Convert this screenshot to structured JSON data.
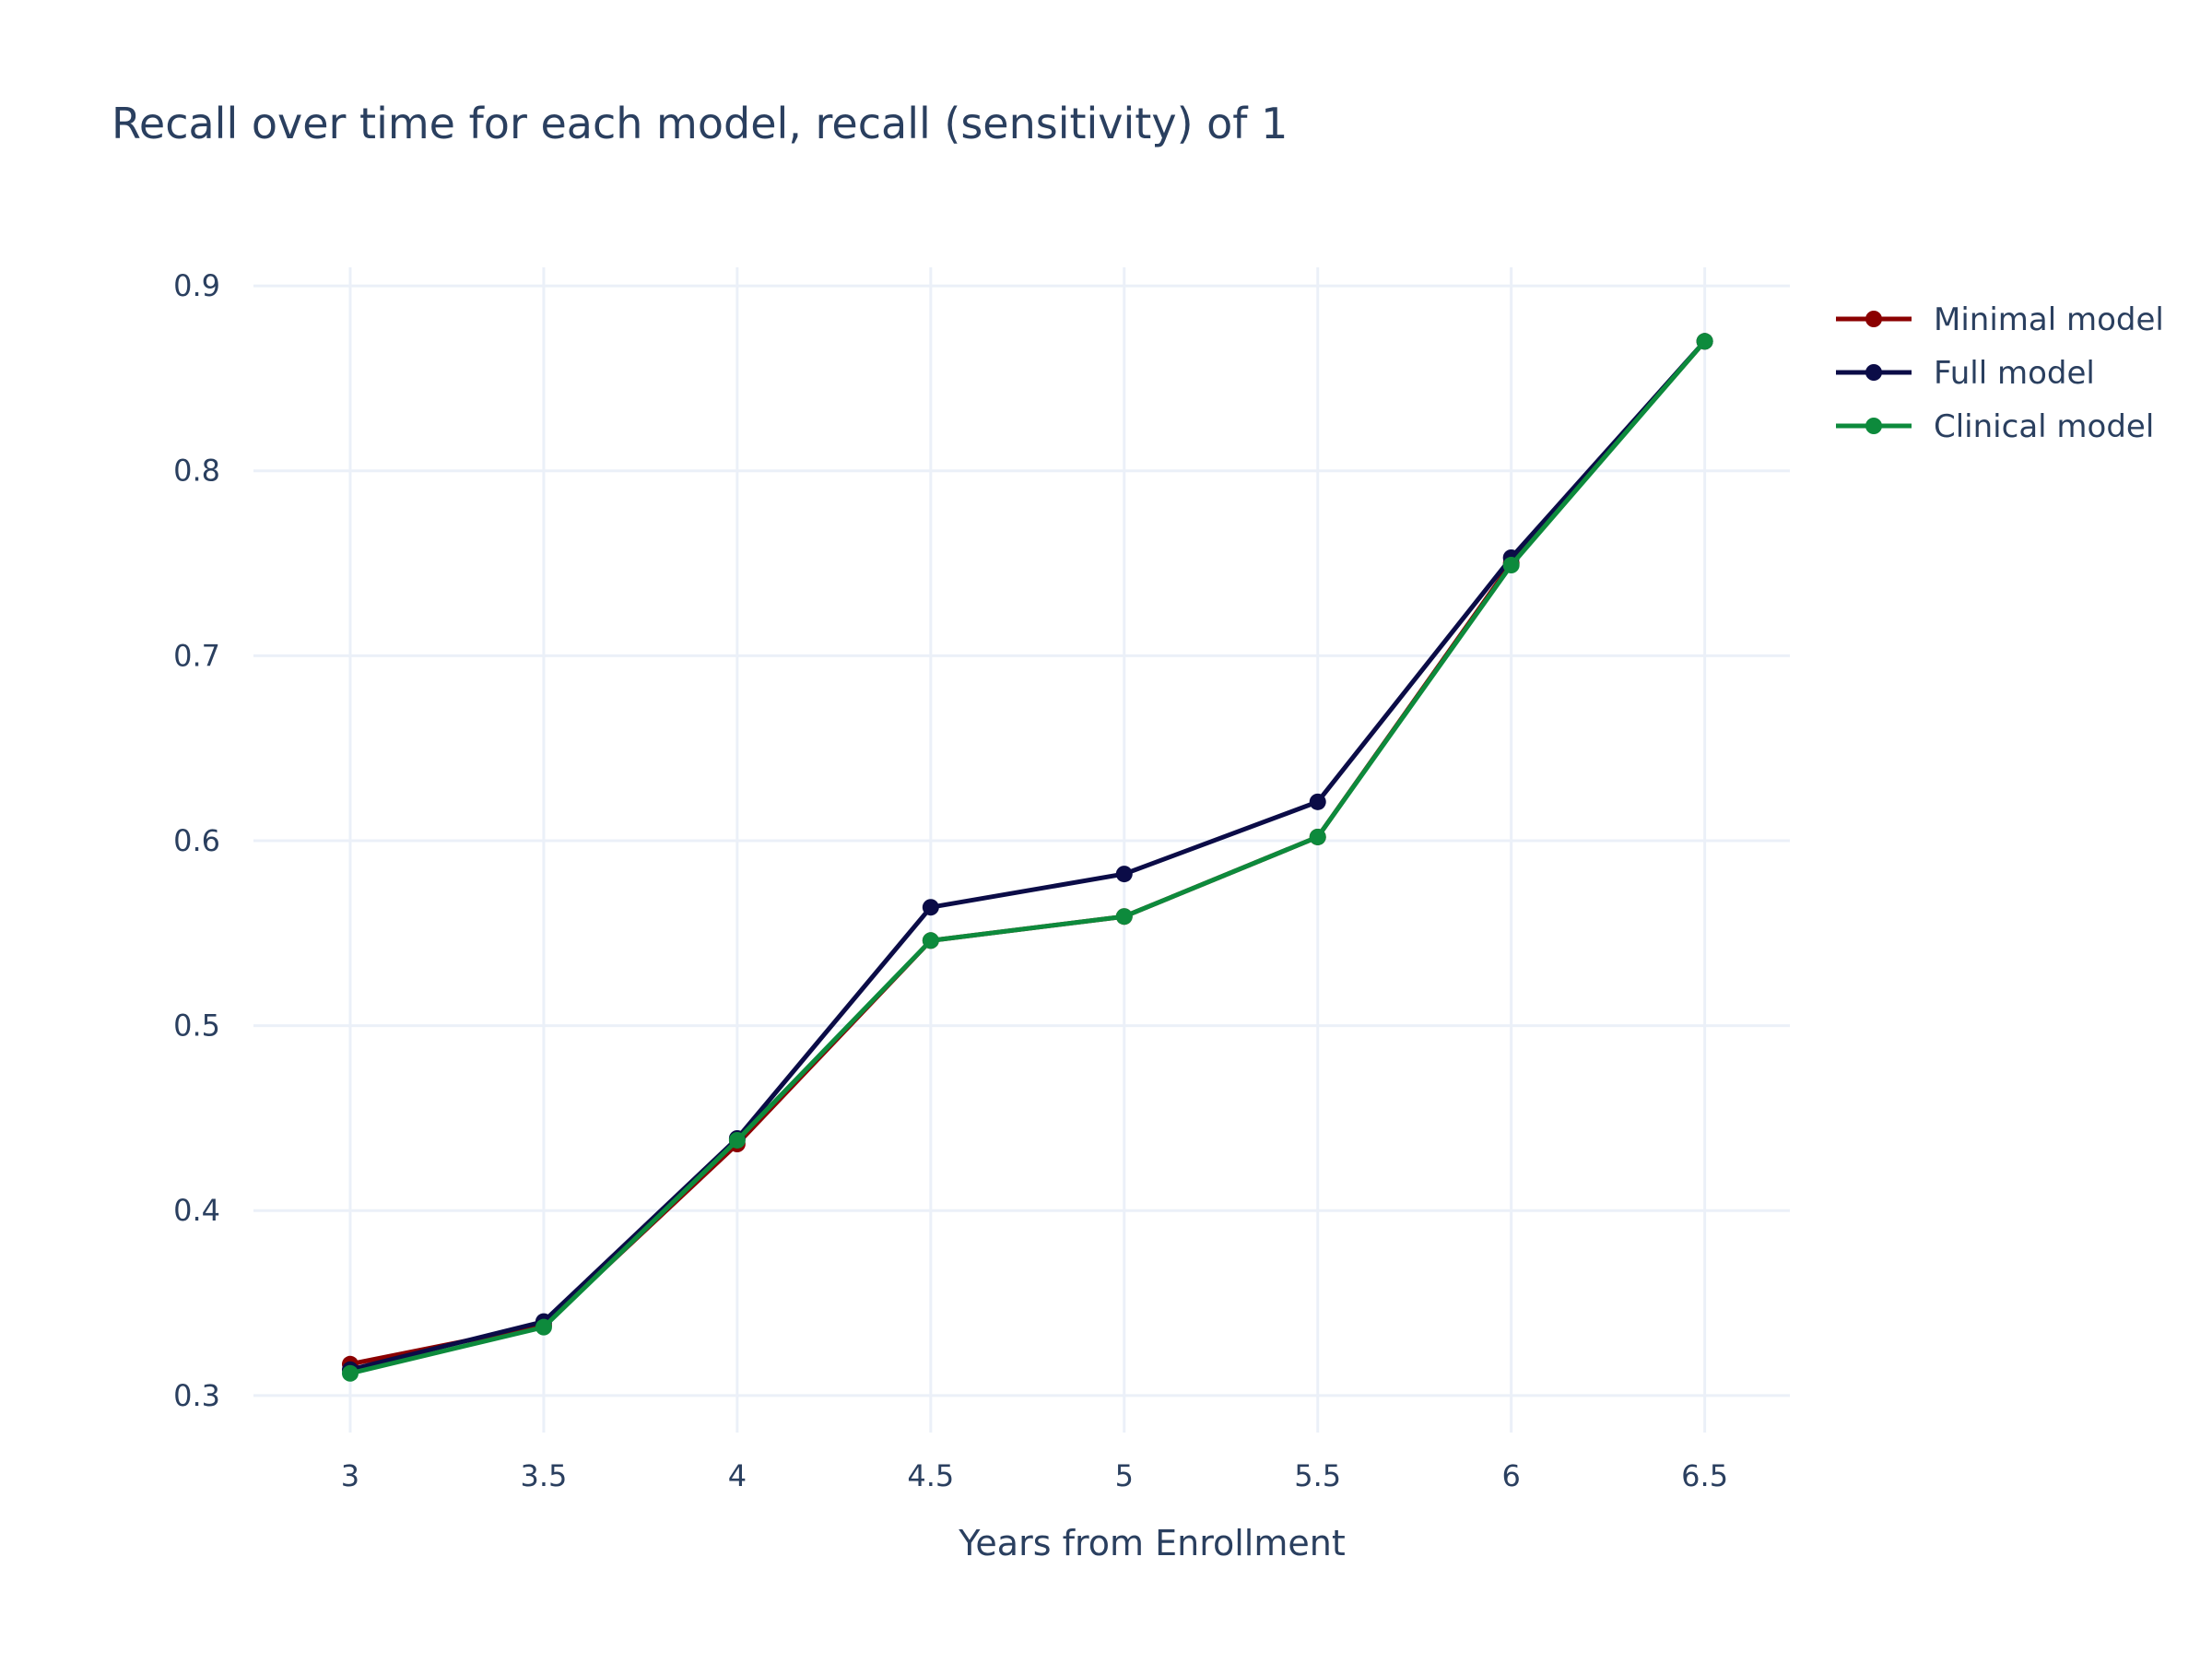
{
  "chart_data": {
    "type": "line",
    "title": "Recall over time for each model, recall (sensitivity) of 1",
    "xlabel": "Years from Enrollment",
    "ylabel": "",
    "x": [
      3,
      3.5,
      4,
      4.5,
      5,
      5.5,
      6,
      6.5
    ],
    "x_tick_labels": [
      "3",
      "3.5",
      "4",
      "4.5",
      "5",
      "5.5",
      "6",
      "6.5"
    ],
    "y_ticks": [
      0.3,
      0.4,
      0.5,
      0.6,
      0.7,
      0.8,
      0.9
    ],
    "y_tick_labels": [
      "0.3",
      "0.4",
      "0.5",
      "0.6",
      "0.7",
      "0.8",
      "0.9"
    ],
    "xlim": [
      2.75,
      6.72
    ],
    "ylim": [
      0.28,
      0.91
    ],
    "grid": true,
    "legend_position": "top-right outside",
    "series": [
      {
        "name": "Minimal model",
        "color": "#8b0000",
        "values": [
          0.317,
          0.338,
          0.436,
          0.546,
          0.559,
          0.602,
          0.75,
          0.87
        ]
      },
      {
        "name": "Full model",
        "color": "#0b0c47",
        "values": [
          0.314,
          0.34,
          0.439,
          0.564,
          0.582,
          0.621,
          0.753,
          0.87
        ]
      },
      {
        "name": "Clinical model",
        "color": "#0d8a3c",
        "values": [
          0.312,
          0.337,
          0.438,
          0.546,
          0.559,
          0.602,
          0.749,
          0.87
        ]
      }
    ]
  }
}
